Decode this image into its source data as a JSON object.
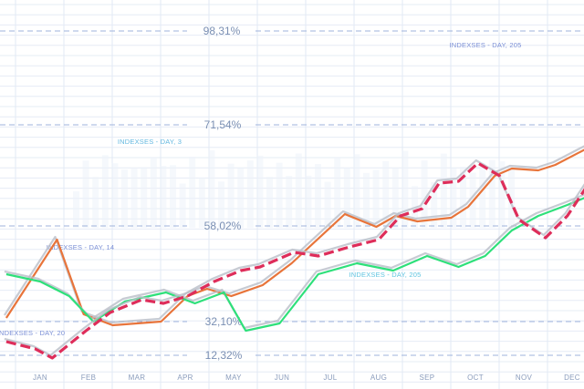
{
  "chart_data": {
    "type": "line",
    "title": "",
    "xlabel": "",
    "ylabel": "",
    "grid": true,
    "categories": [
      "JAN",
      "FEB",
      "MAR",
      "APR",
      "MAY",
      "JUN",
      "JUL",
      "AUG",
      "SEP",
      "OCT",
      "NOV",
      "DEC"
    ],
    "y_ticks": [
      "98,31%",
      "71,54%",
      "58,02%",
      "32,10%",
      "12,32%"
    ],
    "annotations": [
      {
        "text": "INDEXSES - DAY, 205",
        "color": "#7b8fd6"
      },
      {
        "text": "INDEXSES - DAY, 3",
        "color": "#64b8e0"
      },
      {
        "text": "INDEXSES - DAY, 14",
        "color": "#7b8fd6"
      },
      {
        "text": "INDEXSES - DAY, 205",
        "color": "#5fc4e0"
      },
      {
        "text": "INDEXSES - DAY, 20",
        "color": "#7b8fd6"
      }
    ],
    "series": [
      {
        "color": "#e8743a",
        "style": "solid",
        "x": [
          -0.7,
          0.35,
          0.9,
          1.5,
          2.0,
          2.5,
          3.05,
          3.45,
          3.95,
          4.6,
          5.2,
          6.3,
          6.95,
          7.35,
          7.8,
          8.5,
          8.85,
          9.4,
          9.75,
          10.3,
          10.65,
          11.45
        ],
        "y": [
          28,
          71,
          30,
          24,
          25,
          26,
          40,
          44,
          40,
          46,
          58,
          85,
          78,
          84,
          81,
          83,
          89,
          106,
          110,
          109,
          112,
          123
        ]
      },
      {
        "color": "#2ee07a",
        "style": "solid",
        "x": [
          -0.7,
          0.0,
          0.6,
          1.1,
          1.75,
          2.6,
          3.2,
          3.8,
          4.25,
          4.95,
          5.75,
          6.55,
          7.3,
          8.0,
          8.65,
          9.2,
          9.75,
          10.3,
          10.9,
          11.45
        ],
        "y": [
          52,
          48,
          40,
          26,
          37,
          42,
          36,
          42,
          21,
          25,
          52,
          58,
          54,
          62,
          56,
          62,
          76,
          84,
          90,
          96
        ]
      },
      {
        "color": "#de2d5a",
        "style": "dashed",
        "x": [
          -0.7,
          -0.1,
          0.25,
          0.95,
          1.45,
          2.1,
          2.55,
          3.05,
          3.6,
          4.15,
          4.55,
          5.25,
          5.75,
          6.4,
          7.0,
          7.45,
          7.9,
          8.25,
          8.65,
          9.05,
          9.5,
          9.9,
          10.45,
          10.9,
          11.45
        ],
        "y": [
          15,
          11,
          6,
          21,
          31,
          38,
          36,
          40,
          48,
          54,
          56,
          64,
          62,
          67,
          71,
          84,
          88,
          102,
          103,
          113,
          106,
          82,
          72,
          84,
          106
        ]
      }
    ]
  }
}
